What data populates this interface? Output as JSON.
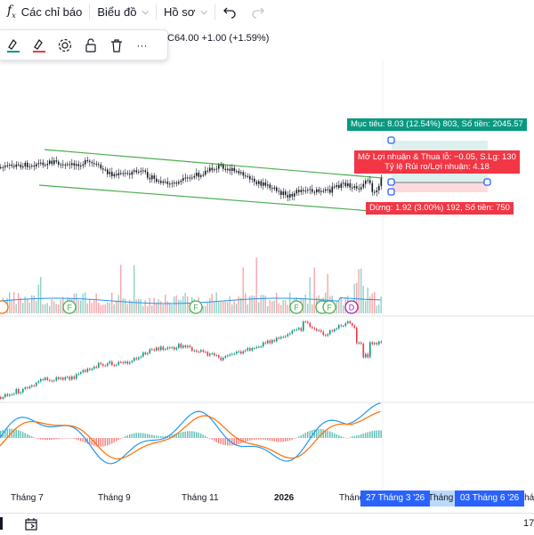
{
  "toolbar": {
    "indicators_label": "Các chỉ báo",
    "chart_label": "Biểu đồ",
    "profile_label": "Hồ sơ"
  },
  "float_toolbar": {
    "more": "···"
  },
  "quote": {
    "text": "C64.00  +1.00 (+1.59%)"
  },
  "position": {
    "target_label": "Mục tiêu: 8.03 (12.54%) 803, Số tiền: 2045.57",
    "pnl_label": "Mở Lợi nhuận & Thua lỗ: −0.05, S.Lg: 130",
    "ratio_label": "Tỷ lệ Rủi ro/Lợi nhuận: 4.18",
    "stop_label": "Dừng: 1.92 (3.00%) 192, Số tiền: 750",
    "target_color": "#089981",
    "stop_color": "#f23645"
  },
  "markers": {
    "f": "F",
    "d": "D"
  },
  "time_axis": {
    "labels": [
      "Tháng 7",
      "Tháng 9",
      "Tháng 11",
      "2026",
      "Tháng",
      "Tháng Nă",
      "Tháng"
    ],
    "range_start": "27 Tháng 3 '26",
    "range_end": "03 Tháng 6 '26"
  },
  "bottom": {
    "right_value": "17"
  }
}
